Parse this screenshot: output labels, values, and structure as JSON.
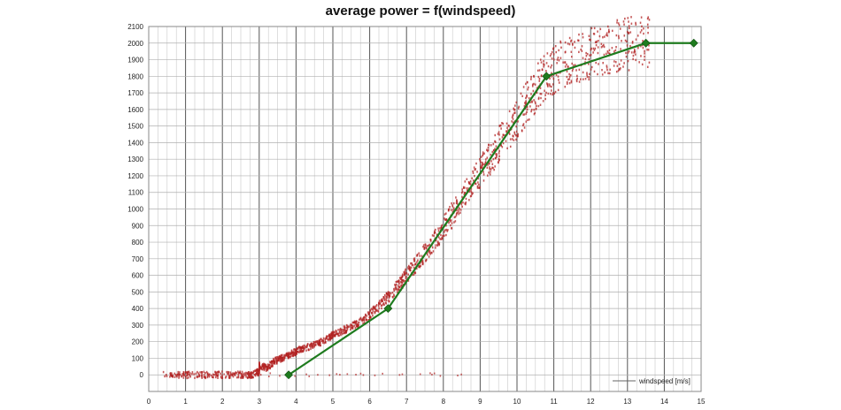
{
  "chart_data": {
    "type": "scatter",
    "title": "average power = f(windspeed)",
    "xlabel": "windspeed [m/s]",
    "ylabel": "",
    "xlim": [
      0,
      15
    ],
    "ylim": [
      -100,
      2100
    ],
    "x_ticks": [
      0,
      1,
      2,
      3,
      4,
      5,
      6,
      7,
      8,
      9,
      10,
      11,
      12,
      13,
      14,
      15
    ],
    "y_ticks": [
      0,
      100,
      200,
      300,
      400,
      500,
      600,
      700,
      800,
      900,
      1000,
      1100,
      1200,
      1300,
      1400,
      1500,
      1600,
      1700,
      1800,
      1900,
      2000,
      2100
    ],
    "grid": true,
    "series": [
      {
        "type": "scatter",
        "color": "#b22222",
        "description_points": [
          [
            0.4,
            0
          ],
          [
            1.0,
            0
          ],
          [
            1.5,
            0
          ],
          [
            2.0,
            0
          ],
          [
            2.5,
            0
          ],
          [
            2.8,
            0
          ],
          [
            3.0,
            20
          ],
          [
            3.0,
            60
          ],
          [
            3.2,
            40
          ],
          [
            3.4,
            80
          ],
          [
            3.6,
            100
          ],
          [
            3.8,
            120
          ],
          [
            4.0,
            140
          ],
          [
            4.2,
            160
          ],
          [
            4.5,
            180
          ],
          [
            4.8,
            210
          ],
          [
            5.0,
            240
          ],
          [
            5.3,
            270
          ],
          [
            5.6,
            300
          ],
          [
            5.9,
            340
          ],
          [
            6.2,
            400
          ],
          [
            6.5,
            470
          ],
          [
            6.8,
            540
          ],
          [
            7.0,
            600
          ],
          [
            7.3,
            680
          ],
          [
            7.6,
            760
          ],
          [
            7.9,
            850
          ],
          [
            8.2,
            950
          ],
          [
            8.5,
            1050
          ],
          [
            8.8,
            1150
          ],
          [
            9.1,
            1250
          ],
          [
            9.4,
            1350
          ],
          [
            9.7,
            1450
          ],
          [
            10.0,
            1550
          ],
          [
            10.3,
            1650
          ],
          [
            10.6,
            1750
          ],
          [
            10.9,
            1820
          ],
          [
            11.2,
            1870
          ],
          [
            11.6,
            1900
          ],
          [
            12.0,
            1940
          ],
          [
            12.4,
            1970
          ],
          [
            12.8,
            1990
          ],
          [
            13.2,
            2000
          ],
          [
            13.6,
            2000
          ]
        ]
      },
      {
        "type": "line",
        "color": "#1e7b1e",
        "x": [
          3.8,
          6.5,
          10.8,
          13.5,
          14.8
        ],
        "y": [
          0,
          400,
          1800,
          2000,
          2000
        ]
      }
    ]
  }
}
